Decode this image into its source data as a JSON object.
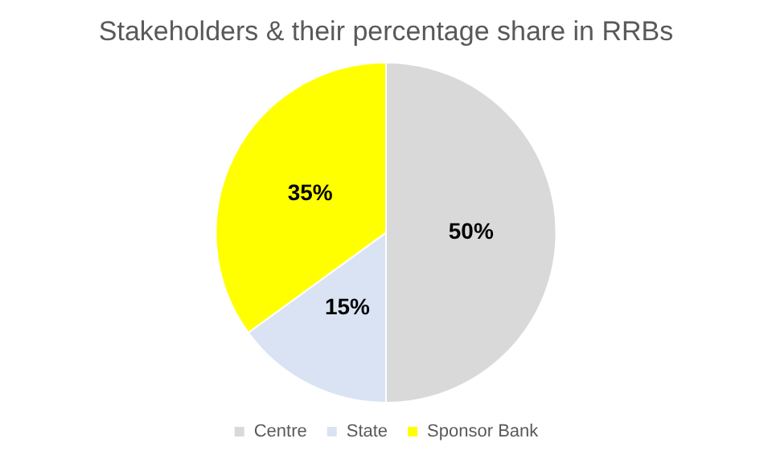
{
  "chart_data": {
    "type": "pie",
    "title": "Stakeholders & their percentage share in RRBs",
    "categories": [
      "Centre",
      "State",
      "Sponsor Bank"
    ],
    "values": [
      50,
      15,
      35
    ],
    "colors": [
      "#d9d9d9",
      "#dae3f3",
      "#ffff00"
    ],
    "value_labels": [
      "50%",
      "15%",
      "35%"
    ],
    "legend": "bottom"
  }
}
